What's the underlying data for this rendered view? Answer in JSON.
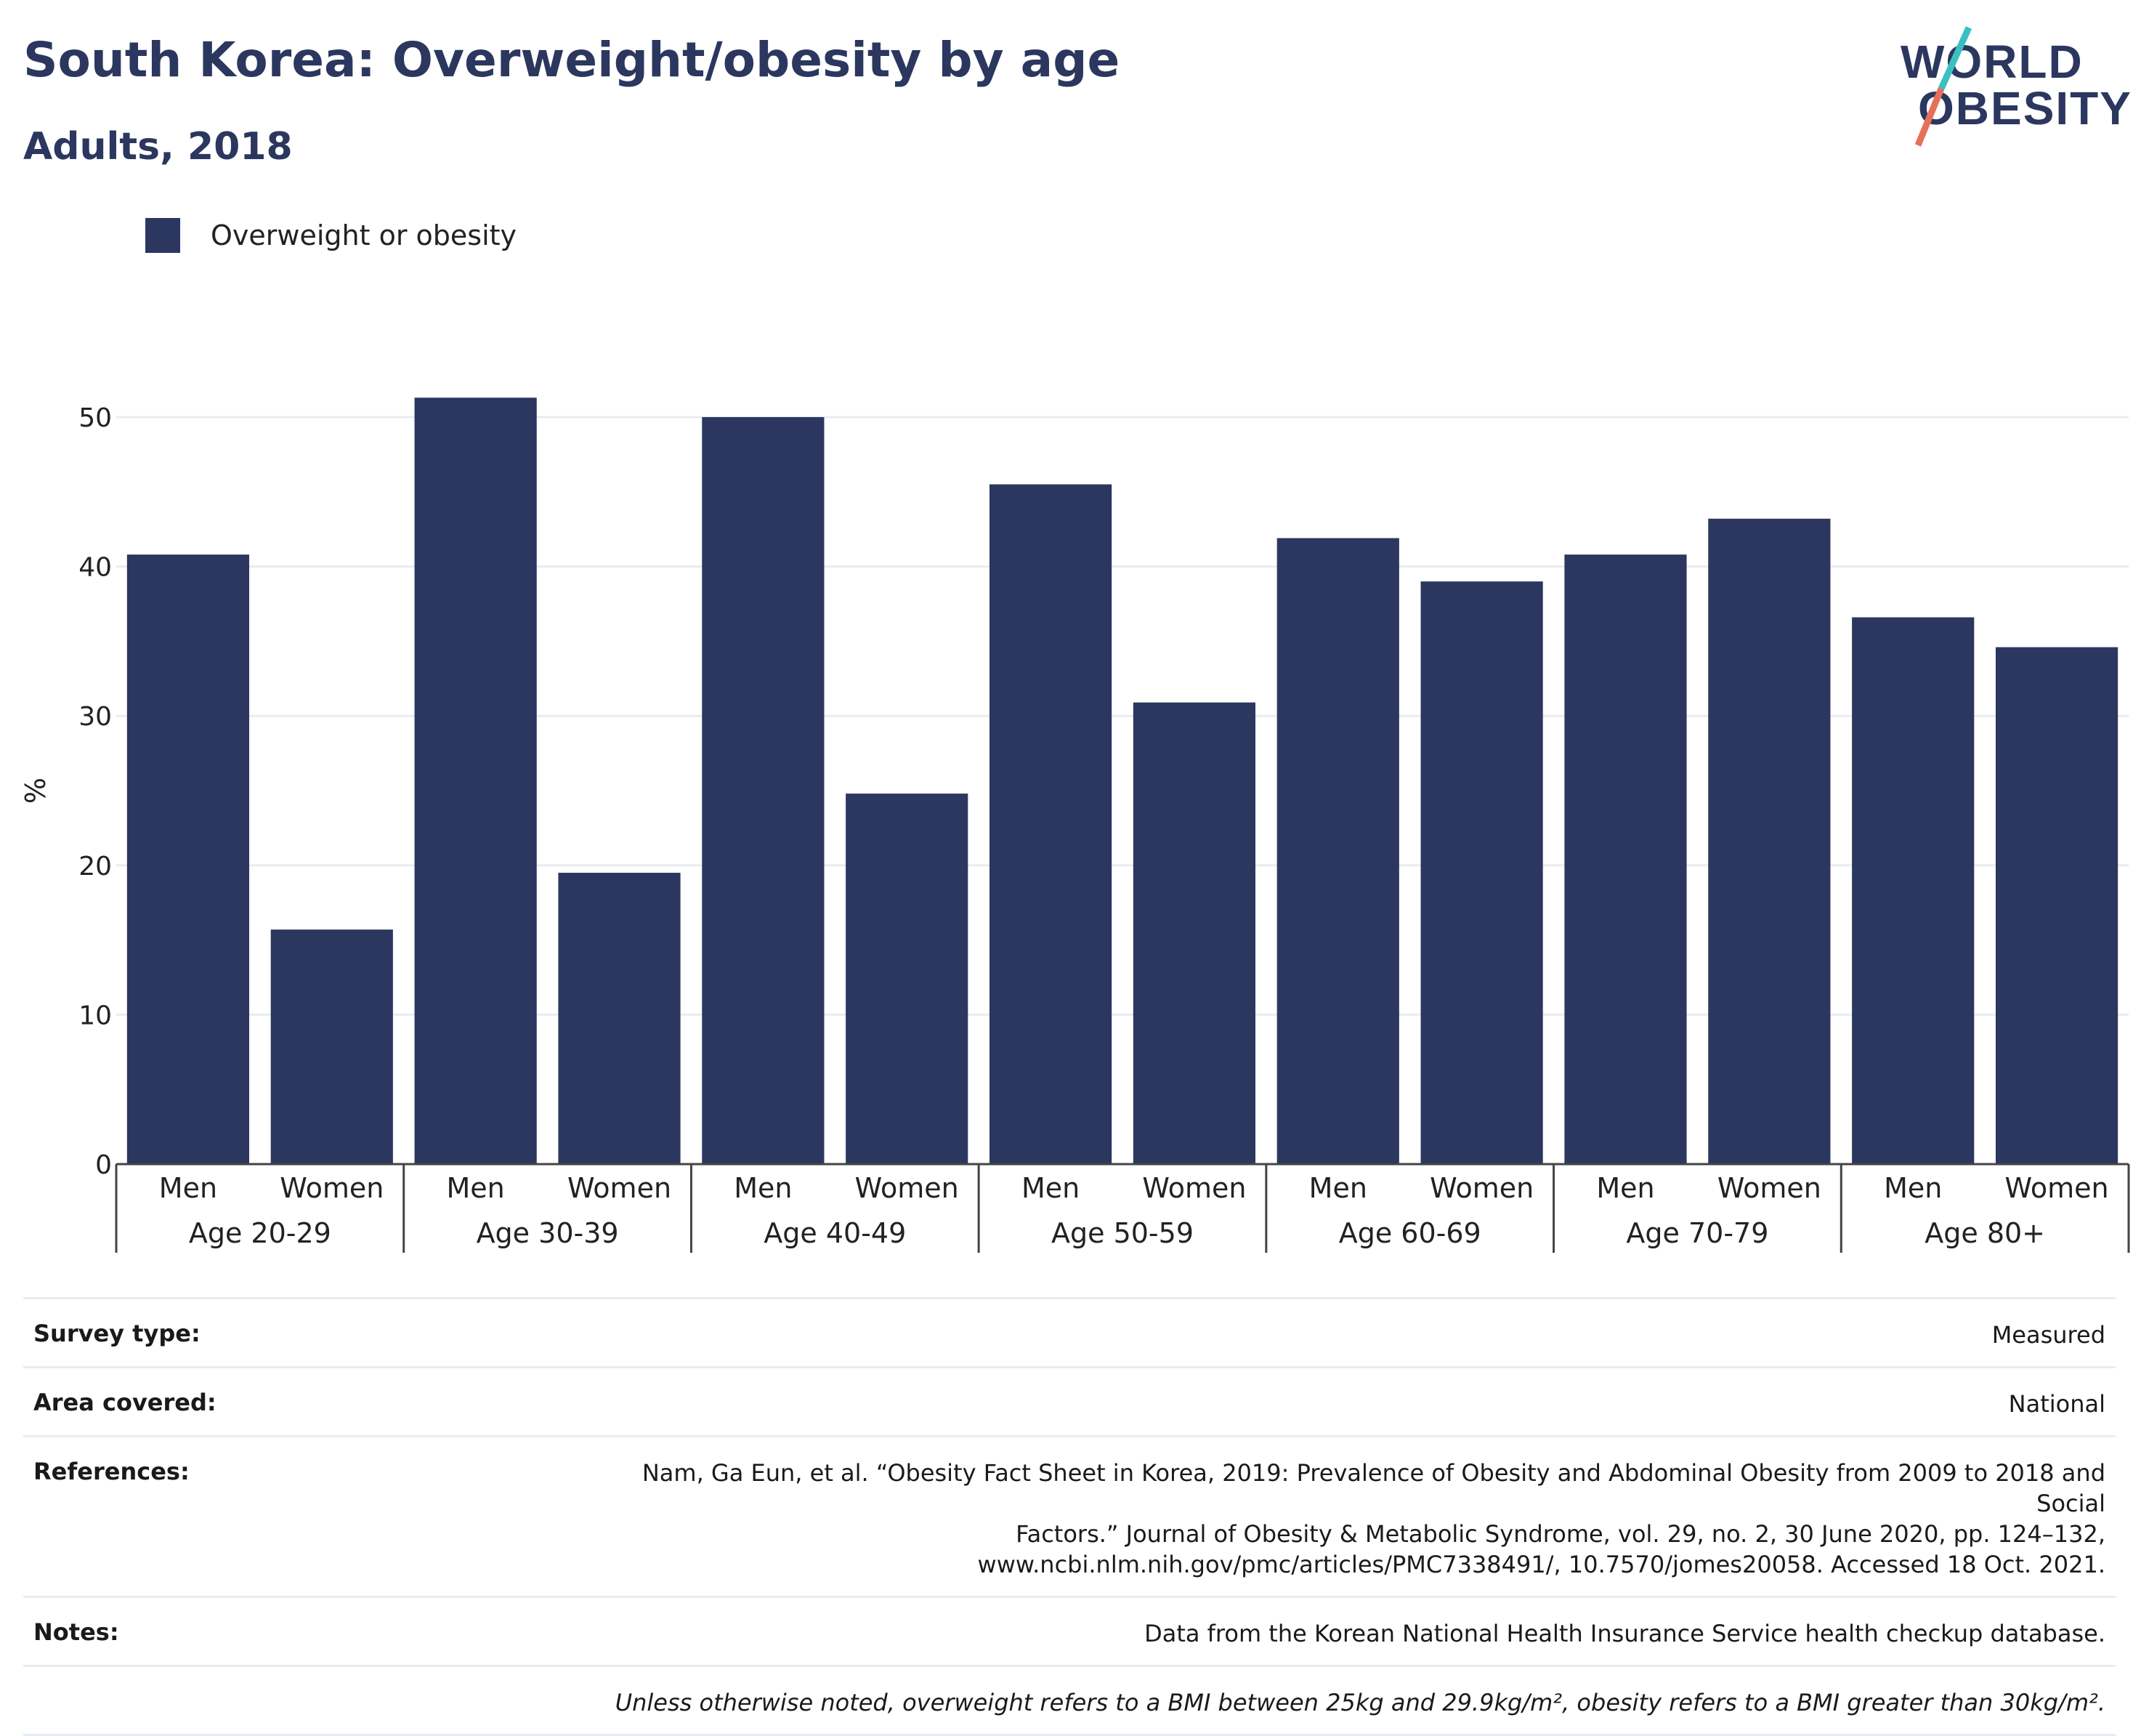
{
  "header": {
    "title": "South Korea: Overweight/obesity by age",
    "subtitle": "Adults, 2018"
  },
  "logo": {
    "line1": "WORLD",
    "line2": "OBESITY",
    "slash_colors": [
      "#3cbfc1",
      "#e8705b"
    ]
  },
  "legend": {
    "items": [
      {
        "label": "Overweight or obesity",
        "color": "#2b375f"
      }
    ]
  },
  "chart_data": {
    "type": "bar",
    "title": "South Korea: Overweight/obesity by age",
    "subtitle": "Adults, 2018",
    "ylabel": "%",
    "xlabel": "",
    "ylim": [
      0,
      55
    ],
    "yticks": [
      0,
      10,
      20,
      30,
      40,
      50
    ],
    "grid": true,
    "legend_position": "top-left",
    "groups": [
      "Age 20-29",
      "Age 30-39",
      "Age 40-49",
      "Age 50-59",
      "Age 60-69",
      "Age 70-79",
      "Age 80+"
    ],
    "subcategories": [
      "Men",
      "Women"
    ],
    "series": [
      {
        "name": "Overweight or obesity",
        "color": "#2b375f",
        "values": [
          [
            40.8,
            15.7
          ],
          [
            51.3,
            19.5
          ],
          [
            50.0,
            24.8
          ],
          [
            45.5,
            30.9
          ],
          [
            41.9,
            39.0
          ],
          [
            40.8,
            43.2
          ],
          [
            36.6,
            34.6
          ]
        ]
      }
    ]
  },
  "details": {
    "survey_type_label": "Survey type:",
    "survey_type_value": "Measured",
    "area_label": "Area covered:",
    "area_value": "National",
    "references_label": "References:",
    "references_value": "Nam, Ga Eun, et al. “Obesity Fact Sheet in Korea, 2019: Prevalence of Obesity and Abdominal Obesity from 2009 to 2018 and Social\nFactors.” Journal of Obesity & Metabolic Syndrome, vol. 29, no. 2, 30 June 2020, pp. 124–132,\nwww.ncbi.nlm.nih.gov/pmc/articles/PMC7338491/, 10.7570/jomes20058. Accessed 18 Oct. 2021.",
    "notes_label": "Notes:",
    "notes_value": "Data from the Korean National Health Insurance Service health checkup database.",
    "footnote": "Unless otherwise noted, overweight refers to a BMI between 25kg and 29.9kg/m², obesity refers to a BMI greater than 30kg/m²."
  }
}
